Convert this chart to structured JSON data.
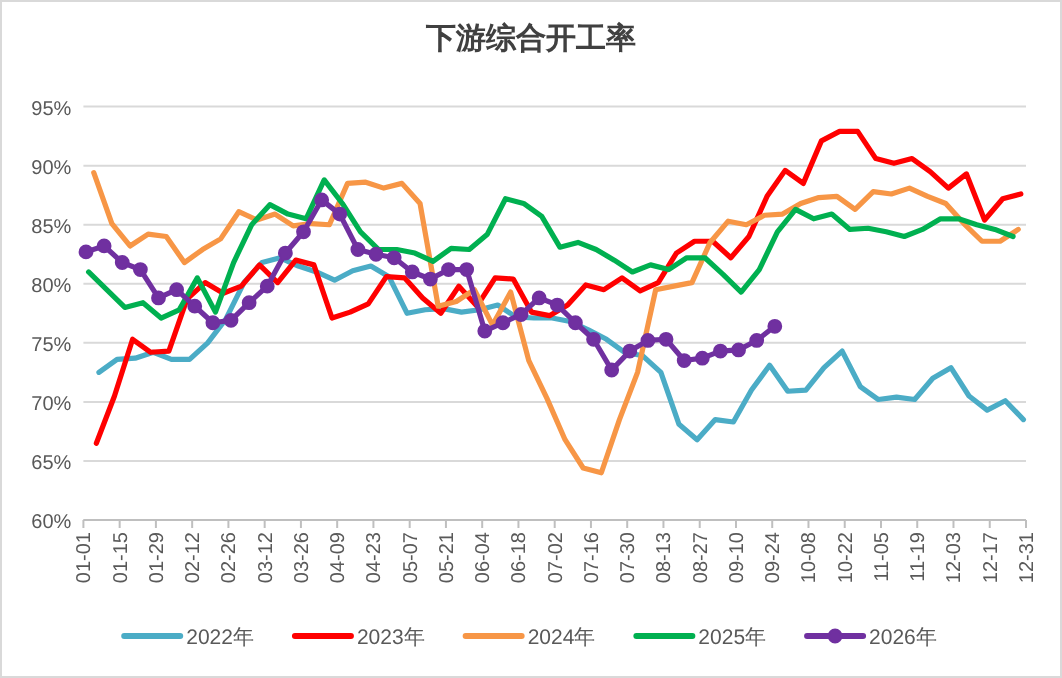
{
  "chart_data": {
    "type": "line",
    "title": "下游综合开工率",
    "xlim": [
      "--01-01",
      "--12-31"
    ],
    "xticks": [
      {
        "value": "--01-01",
        "label": "01-01"
      },
      {
        "value": "--01-15",
        "label": "01-15"
      },
      {
        "value": "--01-29",
        "label": "01-29"
      },
      {
        "value": "--02-12",
        "label": "02-12"
      },
      {
        "value": "--02-26",
        "label": "02-26"
      },
      {
        "value": "--03-12",
        "label": "03-12"
      },
      {
        "value": "--03-26",
        "label": "03-26"
      },
      {
        "value": "--04-09",
        "label": "04-09"
      },
      {
        "value": "--04-23",
        "label": "04-23"
      },
      {
        "value": "--05-07",
        "label": "05-07"
      },
      {
        "value": "--05-21",
        "label": "05-21"
      },
      {
        "value": "--06-04",
        "label": "06-04"
      },
      {
        "value": "--06-18",
        "label": "06-18"
      },
      {
        "value": "--07-02",
        "label": "07-02"
      },
      {
        "value": "--07-16",
        "label": "07-16"
      },
      {
        "value": "--07-30",
        "label": "07-30"
      },
      {
        "value": "--08-13",
        "label": "08-13"
      },
      {
        "value": "--08-27",
        "label": "08-27"
      },
      {
        "value": "--09-10",
        "label": "09-10"
      },
      {
        "value": "--09-24",
        "label": "09-24"
      },
      {
        "value": "--10-08",
        "label": "10-08"
      },
      {
        "value": "--10-22",
        "label": "10-22"
      },
      {
        "value": "--11-05",
        "label": "11-05"
      },
      {
        "value": "--11-19",
        "label": "11-19"
      },
      {
        "value": "--12-03",
        "label": "12-03"
      },
      {
        "value": "--12-17",
        "label": "12-17"
      },
      {
        "value": "--12-31",
        "label": "12-31"
      }
    ],
    "ylim": [
      60,
      95
    ],
    "yticks": [
      {
        "value": 60,
        "label": "60%"
      },
      {
        "value": 65,
        "label": "65%"
      },
      {
        "value": 70,
        "label": "70%"
      },
      {
        "value": 75,
        "label": "75%"
      },
      {
        "value": 80,
        "label": "80%"
      },
      {
        "value": 85,
        "label": "85%"
      },
      {
        "value": 90,
        "label": "90%"
      },
      {
        "value": 95,
        "label": "95%"
      }
    ],
    "grid": "y",
    "legend": "bottom",
    "series": [
      {
        "name": "2022年",
        "color": "#4bacc6",
        "x": [
          "--01-07",
          "--01-14",
          "--01-21",
          "--01-28",
          "--02-04",
          "--02-11",
          "--02-18",
          "--02-25",
          "--03-04",
          "--03-11",
          "--03-18",
          "--03-25",
          "--04-01",
          "--04-08",
          "--04-15",
          "--04-22",
          "--04-29",
          "--05-06",
          "--05-13",
          "--05-20",
          "--05-27",
          "--06-03",
          "--06-10",
          "--06-17",
          "--06-24",
          "--07-01",
          "--07-08",
          "--07-15",
          "--07-22",
          "--07-29",
          "--08-05",
          "--08-12",
          "--08-19",
          "--08-26",
          "--09-02",
          "--09-09",
          "--09-16",
          "--09-23",
          "--09-30",
          "--10-07",
          "--10-14",
          "--10-21",
          "--10-28",
          "--11-04",
          "--11-11",
          "--11-18",
          "--11-25",
          "--12-02",
          "--12-09",
          "--12-16",
          "--12-23",
          "--12-30"
        ],
        "values": [
          72.5,
          73.6,
          73.7,
          74.2,
          73.6,
          73.6,
          75,
          77,
          80.1,
          81.8,
          82.2,
          81.5,
          81,
          80.3,
          81.1,
          81.5,
          80.6,
          77.5,
          77.8,
          77.9,
          77.6,
          77.8,
          78.2,
          77.2,
          77.1,
          77.1,
          76.8,
          76.1,
          75.3,
          74.2,
          73.9,
          72.5,
          68.1,
          66.8,
          68.5,
          68.3,
          71,
          73.1,
          70.9,
          71,
          72.9,
          74.3,
          71.3,
          70.2,
          70.4,
          70.2,
          72,
          72.9,
          70.5,
          69.3,
          70.1,
          68.5
        ]
      },
      {
        "name": "2023年",
        "color": "#ff0000",
        "x": [
          "--01-06",
          "--01-13",
          "--01-20",
          "--01-27",
          "--02-03",
          "--02-10",
          "--02-17",
          "--02-24",
          "--03-03",
          "--03-10",
          "--03-17",
          "--03-24",
          "--03-31",
          "--04-07",
          "--04-14",
          "--04-21",
          "--04-28",
          "--05-05",
          "--05-12",
          "--05-19",
          "--05-26",
          "--06-02",
          "--06-09",
          "--06-16",
          "--06-23",
          "--06-30",
          "--07-07",
          "--07-14",
          "--07-21",
          "--07-28",
          "--08-04",
          "--08-11",
          "--08-18",
          "--08-25",
          "--09-01",
          "--09-08",
          "--09-15",
          "--09-22",
          "--09-29",
          "--10-06",
          "--10-13",
          "--10-20",
          "--10-27",
          "--11-03",
          "--11-10",
          "--11-17",
          "--11-24",
          "--12-01",
          "--12-08",
          "--12-15",
          "--12-22",
          "--12-29"
        ],
        "values": [
          66.5,
          70.5,
          75.3,
          74.2,
          74.3,
          78.7,
          80.1,
          79.2,
          79.8,
          81.6,
          80.1,
          82,
          81.6,
          77.1,
          77.6,
          78.3,
          80.6,
          80.5,
          78.8,
          77.5,
          79.8,
          78.1,
          80.5,
          80.4,
          77.6,
          77.3,
          78.2,
          79.9,
          79.5,
          80.5,
          79.4,
          80.1,
          82.6,
          83.6,
          83.6,
          82.2,
          84,
          87.4,
          89.6,
          88.5,
          92.1,
          92.9,
          92.9,
          90.6,
          90.2,
          90.6,
          89.5,
          88.1,
          89.3,
          85.4,
          87.2,
          87.6
        ]
      },
      {
        "name": "2024年",
        "color": "#f79646",
        "x": [
          "--01-05",
          "--01-12",
          "--01-19",
          "--01-26",
          "--02-02",
          "--02-09",
          "--02-16",
          "--02-23",
          "--03-02",
          "--03-09",
          "--03-16",
          "--03-23",
          "--03-30",
          "--04-06",
          "--04-13",
          "--04-20",
          "--04-27",
          "--05-04",
          "--05-11",
          "--05-18",
          "--05-25",
          "--06-01",
          "--06-08",
          "--06-15",
          "--06-22",
          "--06-29",
          "--07-06",
          "--07-13",
          "--07-20",
          "--07-27",
          "--08-03",
          "--08-10",
          "--08-17",
          "--08-24",
          "--08-31",
          "--09-07",
          "--09-14",
          "--09-21",
          "--09-28",
          "--10-05",
          "--10-12",
          "--10-19",
          "--10-26",
          "--11-02",
          "--11-09",
          "--11-16",
          "--11-23",
          "--11-30",
          "--12-07",
          "--12-14",
          "--12-21",
          "--12-28"
        ],
        "values": [
          89.4,
          85.1,
          83.2,
          84.2,
          84,
          81.8,
          82.9,
          83.8,
          86.1,
          85.4,
          85.9,
          84.9,
          85.1,
          85,
          88.5,
          88.6,
          88.1,
          88.5,
          86.8,
          78.1,
          78.5,
          79.5,
          76.5,
          79.3,
          73.5,
          70.3,
          66.8,
          64.4,
          64,
          68.5,
          72.5,
          79.5,
          79.8,
          80.1,
          83.5,
          85.3,
          85,
          85.8,
          85.9,
          86.8,
          87.3,
          87.4,
          86.3,
          87.8,
          87.6,
          88.1,
          87.4,
          86.8,
          85.1,
          83.6,
          83.6,
          84.6
        ]
      },
      {
        "name": "2025年",
        "color": "#00b050",
        "x": [
          "--01-03",
          "--01-10",
          "--01-17",
          "--01-24",
          "--01-31",
          "--02-07",
          "--02-14",
          "--02-21",
          "--02-28",
          "--03-07",
          "--03-14",
          "--03-21",
          "--03-28",
          "--04-04",
          "--04-11",
          "--04-18",
          "--04-25",
          "--05-02",
          "--05-09",
          "--05-16",
          "--05-23",
          "--05-30",
          "--06-06",
          "--06-13",
          "--06-20",
          "--06-27",
          "--07-04",
          "--07-11",
          "--07-18",
          "--07-25",
          "--08-01",
          "--08-08",
          "--08-15",
          "--08-22",
          "--08-29",
          "--09-05",
          "--09-12",
          "--09-19",
          "--09-26",
          "--10-03",
          "--10-10",
          "--10-17",
          "--10-24",
          "--10-31",
          "--11-07",
          "--11-14",
          "--11-21",
          "--11-28",
          "--12-05",
          "--12-12",
          "--12-19",
          "--12-26"
        ],
        "values": [
          81,
          79.5,
          78,
          78.4,
          77.1,
          77.8,
          80.5,
          77.6,
          81.8,
          85,
          86.7,
          85.9,
          85.5,
          88.8,
          86.8,
          84.4,
          82.9,
          82.9,
          82.6,
          81.9,
          83,
          82.9,
          84.2,
          87.2,
          86.8,
          85.7,
          83.1,
          83.5,
          82.9,
          82,
          81,
          81.6,
          81.2,
          82.2,
          82.2,
          80.8,
          79.3,
          81.2,
          84.4,
          86.3,
          85.5,
          85.9,
          84.6,
          84.7,
          84.4,
          84,
          84.6,
          85.5,
          85.5,
          85,
          84.6,
          84
        ]
      },
      {
        "name": "2026年",
        "color": "#7030a0",
        "marker": "circle",
        "x": [
          "--01-02",
          "--01-09",
          "--01-16",
          "--01-23",
          "--01-30",
          "--02-06",
          "--02-13",
          "--02-20",
          "--02-27",
          "--03-06",
          "--03-13",
          "--03-20",
          "--03-27",
          "--04-03",
          "--04-10",
          "--04-17",
          "--04-24",
          "--05-01",
          "--05-08",
          "--05-15",
          "--05-22",
          "--05-29",
          "--06-05",
          "--06-12",
          "--06-19",
          "--06-26",
          "--07-03",
          "--07-10",
          "--07-17",
          "--07-24",
          "--07-31",
          "--08-07",
          "--08-14",
          "--08-21",
          "--08-28",
          "--09-04",
          "--09-11",
          "--09-18",
          "--09-25"
        ],
        "values": [
          82.7,
          83.2,
          81.8,
          81.2,
          78.8,
          79.5,
          78.1,
          76.7,
          76.9,
          78.4,
          79.8,
          82.6,
          84.4,
          87.1,
          85.9,
          82.9,
          82.5,
          82.2,
          81,
          80.4,
          81.2,
          81.2,
          76,
          76.7,
          77.4,
          78.8,
          78.2,
          76.7,
          75.3,
          72.7,
          74.3,
          75.2,
          75.3,
          73.5,
          73.7,
          74.3,
          74.4,
          75.2,
          76.4
        ]
      }
    ]
  }
}
